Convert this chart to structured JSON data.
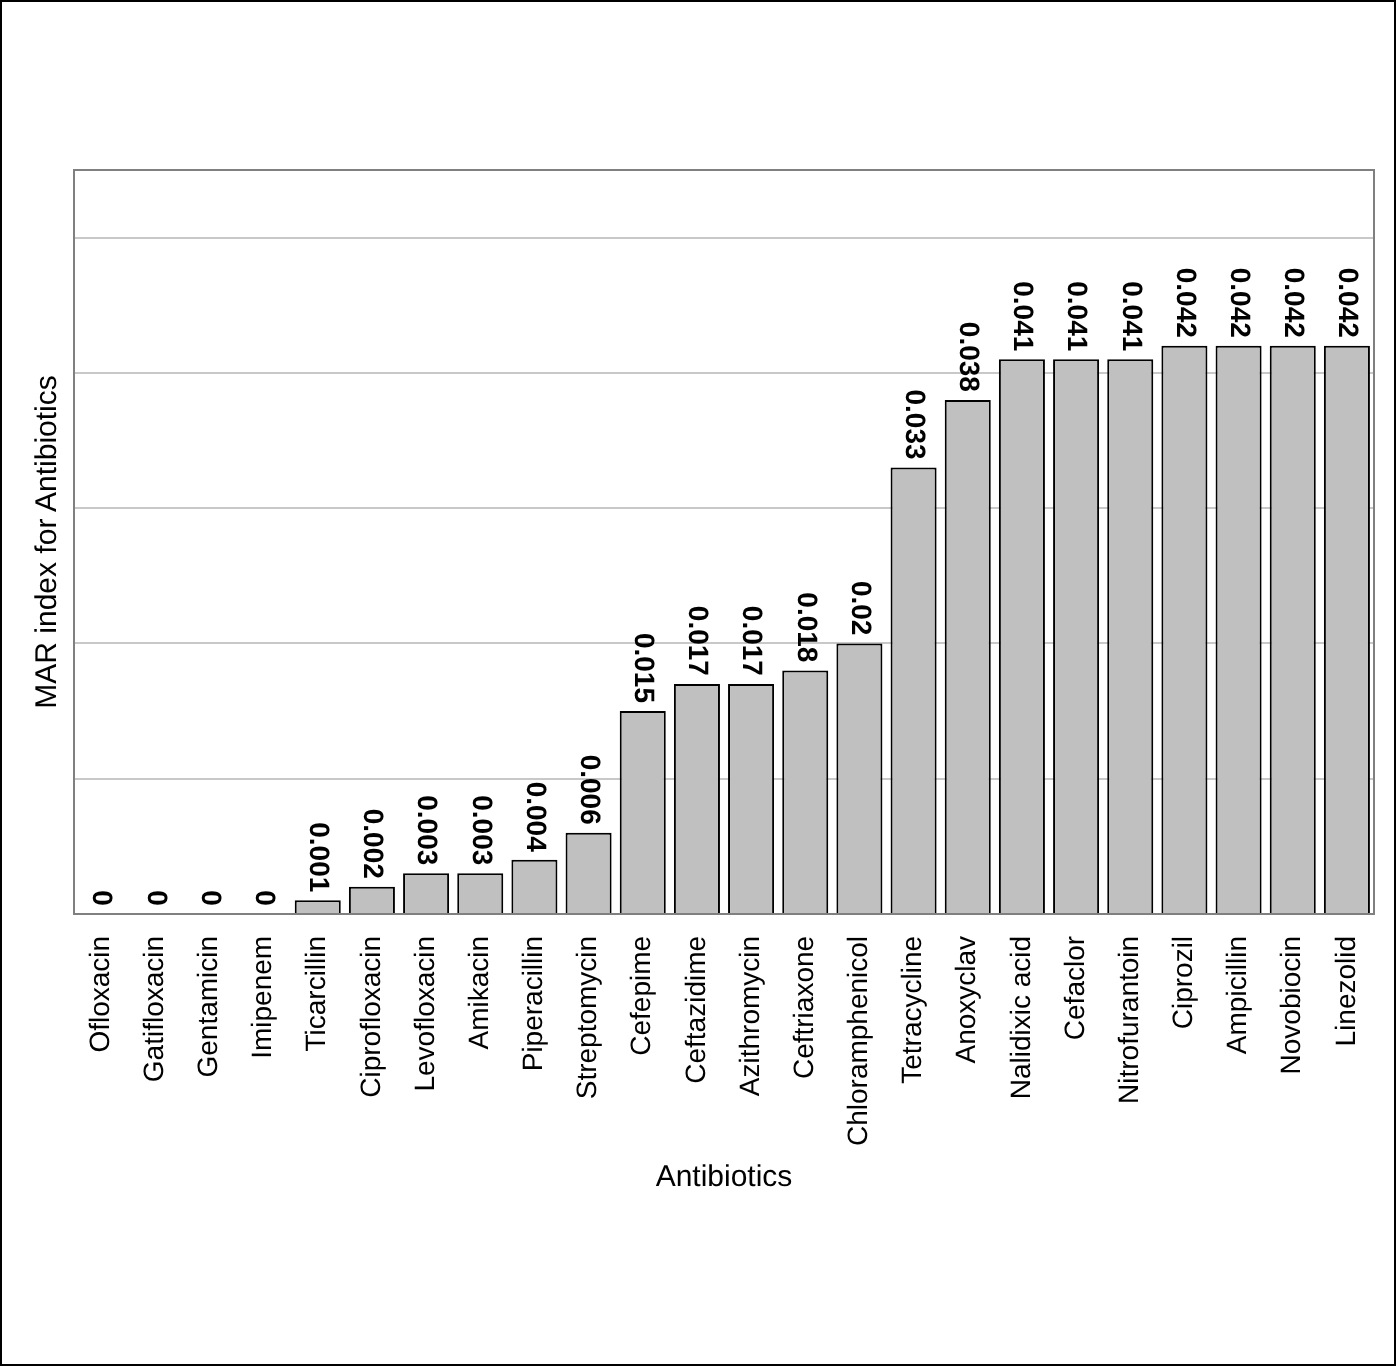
{
  "chart_data": {
    "type": "bar",
    "xlabel": "Antibiotics",
    "ylabel": "MAR index for Antibiotics",
    "categories": [
      "Ofloxacin",
      "Gatifloxacin",
      "Gentamicin",
      "Imipenem",
      "Ticarcillin",
      "Ciprofloxacin",
      "Levofloxacin",
      "Amikacin",
      "Piperacillin",
      "Streptomycin",
      "Cefepime",
      "Ceftazidime",
      "Azithromycin",
      "Ceftriaxone",
      "Chloramphenicol",
      "Tetracycline",
      "Anoxyclav",
      "Nalidixic acid",
      "Cefaclor",
      "Nitrofurantoin",
      "Ciprozil",
      "Ampicillin",
      "Novobiocin",
      "Linezolid"
    ],
    "values": [
      0,
      0,
      0,
      0,
      0.001,
      0.002,
      0.003,
      0.003,
      0.004,
      0.006,
      0.015,
      0.017,
      0.017,
      0.018,
      0.02,
      0.033,
      0.038,
      0.041,
      0.041,
      0.041,
      0.042,
      0.042,
      0.042,
      0.042
    ],
    "color": "#c0c0c0",
    "data_labels": true,
    "grid": "y",
    "tick_labels": "x",
    "ylim": [
      0,
      0.055
    ],
    "yticks": [
      {
        "value": 0,
        "label": null
      },
      {
        "value": 0.01,
        "label": null
      },
      {
        "value": 0.02,
        "label": null
      },
      {
        "value": 0.03,
        "label": null
      },
      {
        "value": 0.04,
        "label": null
      },
      {
        "value": 0.05,
        "label": null
      }
    ]
  }
}
